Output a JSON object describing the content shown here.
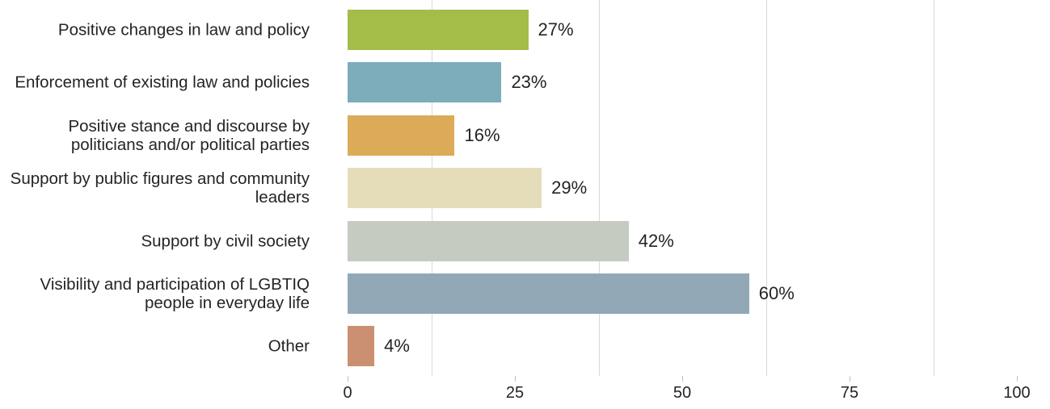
{
  "chart_data": {
    "type": "bar",
    "orientation": "horizontal",
    "categories": [
      "Positive changes in law and policy",
      "Enforcement of existing law and policies",
      "Positive stance and discourse by\npoliticians and/or political parties",
      "Support by public figures and community\nleaders",
      "Support by civil society",
      "Visibility and participation of LGBTIQ\npeople in everyday life",
      "Other"
    ],
    "values": [
      27,
      23,
      16,
      29,
      42,
      60,
      4
    ],
    "value_labels": [
      "27%",
      "23%",
      "16%",
      "29%",
      "42%",
      "60%",
      "4%"
    ],
    "bar_colors": [
      "#a4bc48",
      "#7dacba",
      "#dcab58",
      "#e5ddba",
      "#c6cbc1",
      "#92a8b7",
      "#ca9071"
    ],
    "xlim": [
      0,
      100
    ],
    "x_ticks": [
      0,
      25,
      50,
      75,
      100
    ],
    "x_tick_labels": [
      "0",
      "25",
      "50",
      "75",
      "100"
    ],
    "minor_gridlines": [
      12.5,
      37.5,
      62.5,
      87.5
    ],
    "grid_color": "#d9d9d9",
    "tick_color": "#c0c0c0",
    "text_color": "#252423",
    "title": "",
    "xlabel": "",
    "ylabel": "",
    "legend": null,
    "grid": "vertical-minor-only"
  }
}
